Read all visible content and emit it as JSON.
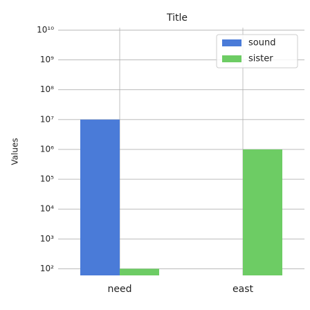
{
  "chart_data": {
    "type": "bar",
    "title": "Title",
    "y_label": "Values",
    "categories": [
      "need",
      "east"
    ],
    "series": [
      {
        "name": "sound",
        "color": "#4a7bd8",
        "values": [
          10000000,
          10
        ]
      },
      {
        "name": "sister",
        "color": "#6dcc64",
        "values": [
          100,
          1000000
        ]
      }
    ],
    "ylim": [
      60,
      12000000000
    ],
    "log_scale": true,
    "grid": true,
    "legend": "upper right",
    "yticks": [
      {
        "value": 100,
        "label": "10²"
      },
      {
        "value": 1000,
        "label": "10³"
      },
      {
        "value": 10000,
        "label": "10⁴"
      },
      {
        "value": 100000,
        "label": "10⁵"
      },
      {
        "value": 1000000,
        "label": "10⁶"
      },
      {
        "value": 10000000,
        "label": "10⁷"
      },
      {
        "value": 100000000,
        "label": "10⁸"
      },
      {
        "value": 1000000000,
        "label": "10⁹"
      },
      {
        "value": 10000000000,
        "label": "10¹⁰"
      }
    ]
  }
}
